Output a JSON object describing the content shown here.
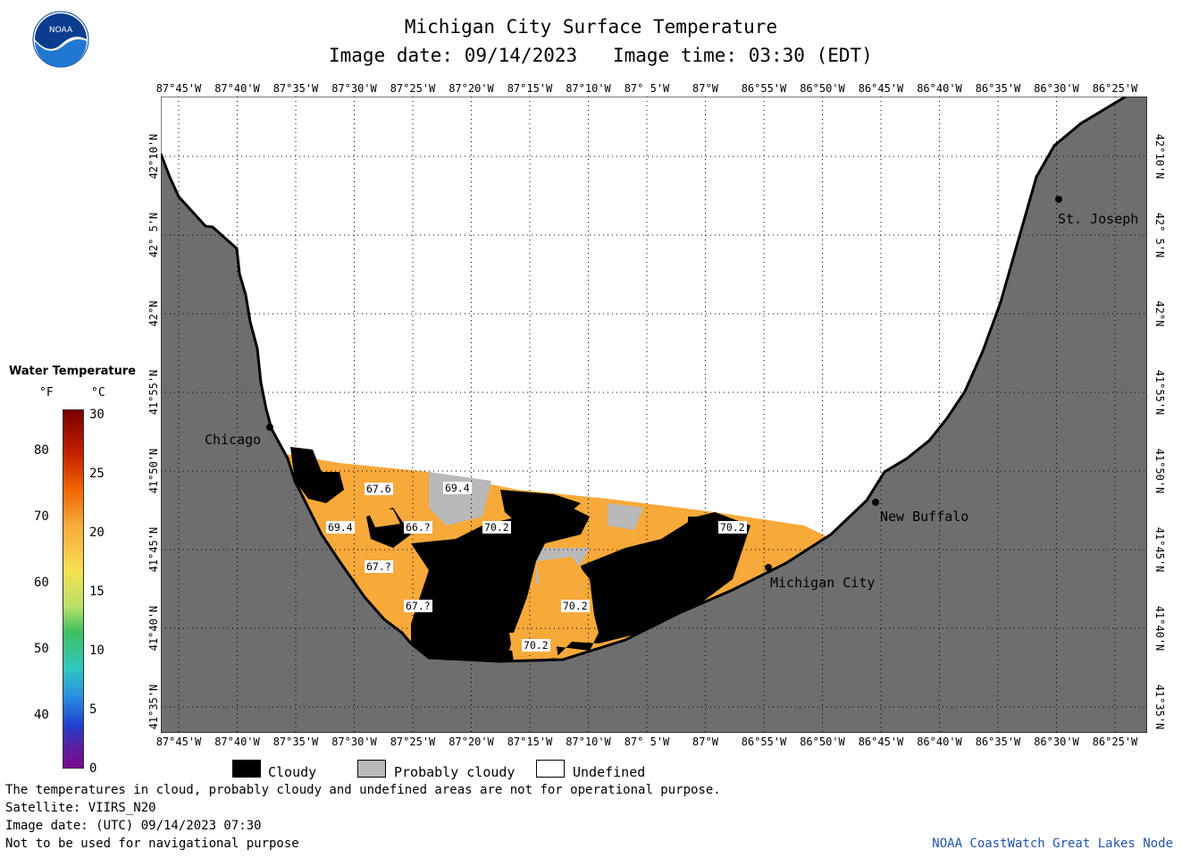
{
  "header": {
    "title": "Michigan City Surface Temperature",
    "image_date_label": "Image date: 09/14/2023",
    "image_time_label": "Image time: 03:30 (EDT)"
  },
  "logo": {
    "text": "NOAA"
  },
  "lon_labels": [
    "87°45'W",
    "87°40'W",
    "87°35'W",
    "87°30'W",
    "87°25'W",
    "87°20'W",
    "87°15'W",
    "87°10'W",
    "87° 5'W",
    "87°W",
    "86°55'W",
    "86°50'W",
    "86°45'W",
    "86°40'W",
    "86°35'W",
    "86°30'W",
    "86°25'W"
  ],
  "lat_labels": [
    "42°10'N",
    "42° 5'N",
    "42°N",
    "41°55'N",
    "41°50'N",
    "41°45'N",
    "41°40'N",
    "41°35'N"
  ],
  "cities": [
    {
      "name": "Chicago"
    },
    {
      "name": "St. Joseph"
    },
    {
      "name": "New Buffalo"
    },
    {
      "name": "Michigan City"
    }
  ],
  "temp_labels": [
    "67.6",
    "69.4",
    "69.4",
    "66.?",
    "70.2",
    "70.2",
    "67.?",
    "67.?",
    "70.2",
    "70.2"
  ],
  "colorbar": {
    "title": "Water Temperature",
    "unit_f": "°F",
    "unit_c": "°C",
    "f_ticks": [
      "80",
      "70",
      "60",
      "50",
      "40"
    ],
    "c_ticks": [
      "30",
      "25",
      "20",
      "15",
      "10",
      "5",
      "0"
    ]
  },
  "legend": {
    "cloudy": "Cloudy",
    "probably_cloudy": "Probably cloudy",
    "undefined": "Undefined"
  },
  "footer": {
    "line1": "The temperatures in cloud, probably cloudy and undefined areas are not for operational purpose.",
    "line2": "Satellite: VIIRS_N20",
    "line3": "Image date: (UTC) 09/14/2023  07:30",
    "line4": "Not to be used for navigational purpose",
    "credit": "NOAA CoastWatch Great Lakes Node"
  },
  "colors": {
    "land": "#6e6e6e",
    "water_warm": "#f7a93a",
    "cloud": "#000000",
    "prob_cloud": "#b9b9b9",
    "undefined": "#ffffff"
  }
}
